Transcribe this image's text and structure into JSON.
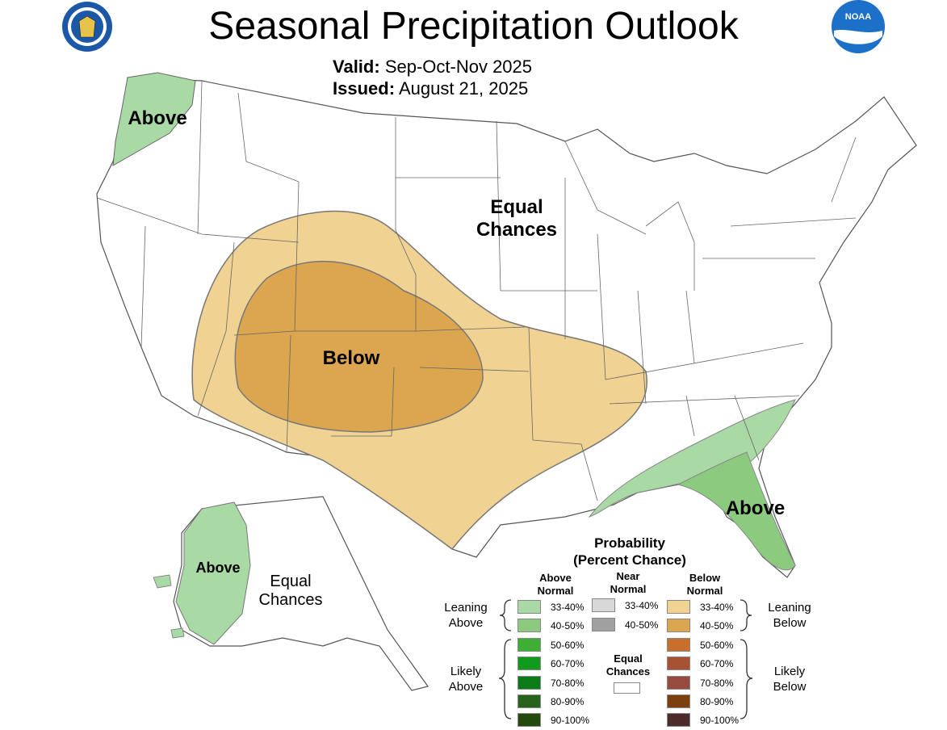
{
  "header": {
    "title": "Seasonal Precipitation Outlook",
    "valid_label": "Valid:",
    "valid_value": "Sep-Oct-Nov 2025",
    "issued_label": "Issued:",
    "issued_value": "August 21, 2025"
  },
  "logos": {
    "left_icon": "doc-seal-icon",
    "right_icon": "noaa-logo-icon",
    "noaa_text": "NOAA"
  },
  "map_labels": {
    "nw_above": "Above",
    "equal_line1": "Equal",
    "equal_line2": "Chances",
    "below": "Below",
    "se_above": "Above",
    "alaska_above": "Above",
    "alaska_equal_line1": "Equal",
    "alaska_equal_line2": "Chances"
  },
  "legend": {
    "title_line1": "Probability",
    "title_line2": "(Percent Chance)",
    "above_header_line1": "Above",
    "above_header_line2": "Normal",
    "near_header_line1": "Near",
    "near_header_line2": "Normal",
    "below_header_line1": "Below",
    "below_header_line2": "Normal",
    "leaning_above_line1": "Leaning",
    "leaning_above_line2": "Above",
    "likely_above_line1": "Likely",
    "likely_above_line2": "Above",
    "leaning_below_line1": "Leaning",
    "leaning_below_line2": "Below",
    "likely_below_line1": "Likely",
    "likely_below_line2": "Below",
    "equal_line1": "Equal",
    "equal_line2": "Chances",
    "above": [
      {
        "label": "33-40%",
        "color": "#a9d9a4"
      },
      {
        "label": "40-50%",
        "color": "#8ccb7f"
      },
      {
        "label": "50-60%",
        "color": "#3fae35"
      },
      {
        "label": "60-70%",
        "color": "#129a1e"
      },
      {
        "label": "70-80%",
        "color": "#0b7a18"
      },
      {
        "label": "80-90%",
        "color": "#27631a"
      },
      {
        "label": "90-100%",
        "color": "#224a0c"
      }
    ],
    "near": [
      {
        "label": "33-40%",
        "color": "#d8d8d8"
      },
      {
        "label": "40-50%",
        "color": "#a0a0a0"
      }
    ],
    "below": [
      {
        "label": "33-40%",
        "color": "#f0d293"
      },
      {
        "label": "40-50%",
        "color": "#dca650"
      },
      {
        "label": "50-60%",
        "color": "#c7702e"
      },
      {
        "label": "60-70%",
        "color": "#a65233"
      },
      {
        "label": "70-80%",
        "color": "#974a3e"
      },
      {
        "label": "80-90%",
        "color": "#7b3f10"
      },
      {
        "label": "90-100%",
        "color": "#4d2b2a"
      }
    ]
  }
}
